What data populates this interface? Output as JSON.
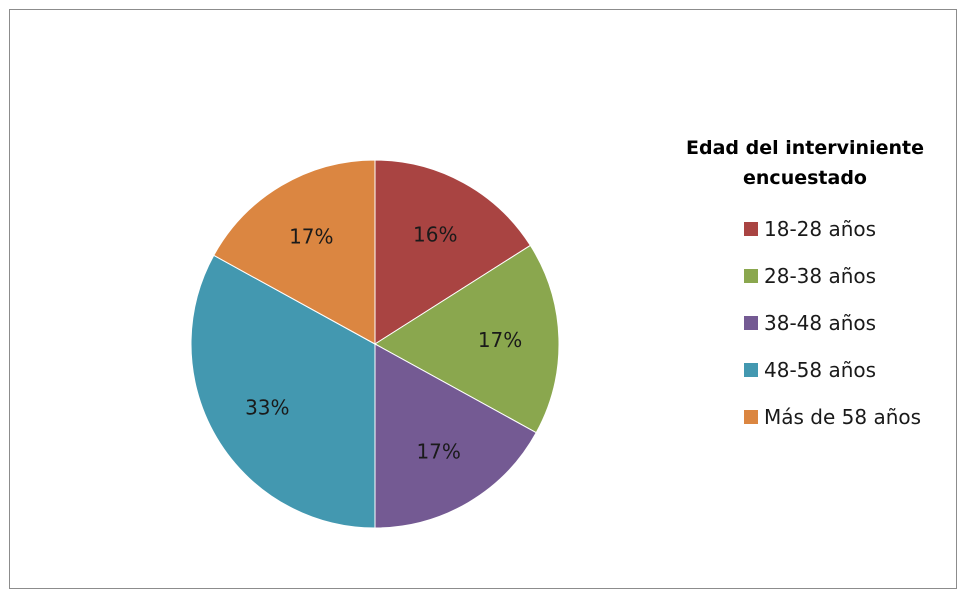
{
  "chart_data": {
    "type": "pie",
    "title": "Edad del interviniente encuestado",
    "slices": [
      {
        "label": "18-28 años",
        "value": 16,
        "display": "16%",
        "color": "#a94442"
      },
      {
        "label": "28-38 años",
        "value": 17,
        "display": "17%",
        "color": "#8aa74e"
      },
      {
        "label": "38-48 años",
        "value": 17,
        "display": "17%",
        "color": "#745a93"
      },
      {
        "label": "48-58 años",
        "value": 33,
        "display": "33%",
        "color": "#4398b0"
      },
      {
        "label": "Más de 58 años",
        "value": 17,
        "display": "17%",
        "color": "#db8641"
      }
    ],
    "legend": "right"
  }
}
